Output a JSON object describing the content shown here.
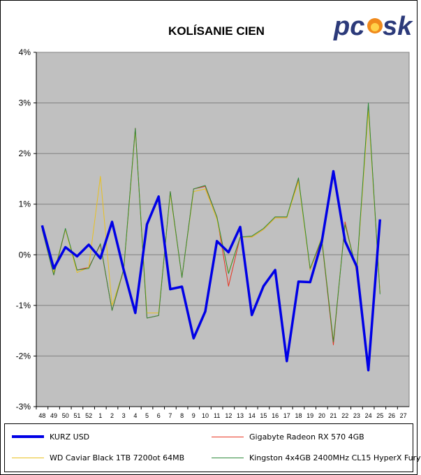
{
  "logo": {
    "text": "pc✪sk",
    "part1": "pc",
    "part2": "sk",
    "color": "#2c3a7a",
    "flame_color": "#f08a1c"
  },
  "chart_data": {
    "type": "line",
    "title": "KOLÍSANIE CIEN",
    "categories": [
      "48",
      "49",
      "50",
      "51",
      "52",
      "1",
      "2",
      "3",
      "4",
      "5",
      "6",
      "7",
      "8",
      "9",
      "10",
      "11",
      "12",
      "13",
      "14",
      "15",
      "16",
      "17",
      "18",
      "19",
      "20",
      "21",
      "22",
      "23",
      "24",
      "25",
      "26",
      "27"
    ],
    "y_ticks": [
      "4%",
      "3%",
      "2%",
      "1%",
      "0%",
      "-1%",
      "-2%",
      "-3%"
    ],
    "ylim": [
      -3,
      4
    ],
    "grid": true,
    "legend_position": "bottom",
    "plot_background": "#c0c0c0",
    "series": [
      {
        "name": "Gigabyte Radeon RX 570 4GB",
        "color": "#e8321e",
        "width": 1,
        "values": [
          0.5,
          -0.4,
          0.5,
          -0.3,
          -0.25,
          0.2,
          -1.1,
          -0.3,
          2.5,
          -1.25,
          -1.2,
          1.25,
          -0.45,
          1.3,
          1.35,
          0.75,
          -0.62,
          0.35,
          0.35,
          0.5,
          0.73,
          0.73,
          1.5,
          -0.3,
          0.3,
          -1.78,
          0.65,
          -0.35,
          2.95,
          -0.75,
          null,
          null
        ]
      },
      {
        "name": "WD Caviar Black 1TB 7200ot 64MB",
        "color": "#e8c020",
        "width": 1,
        "values": [
          0.5,
          -0.35,
          0.5,
          -0.35,
          -0.25,
          1.55,
          -1.0,
          -0.3,
          2.45,
          -1.15,
          -1.15,
          1.2,
          -0.45,
          1.25,
          1.3,
          0.7,
          -0.35,
          0.35,
          0.35,
          0.5,
          0.73,
          0.73,
          1.45,
          -0.3,
          0.35,
          -1.7,
          0.6,
          -0.35,
          2.85,
          -0.75,
          null,
          null
        ]
      },
      {
        "name": "Kingston 4x4GB 2400MHz CL15 HyperX Fury",
        "color": "#2e8b3c",
        "width": 1,
        "values": [
          0.5,
          -0.4,
          0.52,
          -0.3,
          -0.27,
          0.22,
          -1.1,
          -0.28,
          2.5,
          -1.25,
          -1.2,
          1.25,
          -0.45,
          1.3,
          1.37,
          0.75,
          -0.37,
          0.35,
          0.37,
          0.52,
          0.75,
          0.75,
          1.52,
          -0.27,
          0.32,
          -1.72,
          0.6,
          -0.3,
          3.0,
          -0.78,
          null,
          null
        ]
      },
      {
        "name": "KURZ USD",
        "color": "#0000e6",
        "width": 3.5,
        "values": [
          0.58,
          -0.27,
          0.15,
          -0.03,
          0.2,
          -0.07,
          0.65,
          -0.3,
          -1.15,
          0.6,
          1.15,
          -0.68,
          -0.63,
          -1.65,
          -1.12,
          0.27,
          0.05,
          0.55,
          -1.19,
          -0.62,
          -0.3,
          -2.1,
          -0.53,
          -0.54,
          0.25,
          1.65,
          0.27,
          -0.23,
          -2.28,
          0.7,
          null,
          null
        ]
      }
    ],
    "legend_items": [
      {
        "key": "usd",
        "name": "KURZ USD",
        "color": "#0000e6",
        "thick": true
      },
      {
        "key": "gpu",
        "name": "Gigabyte Radeon RX 570 4GB",
        "color": "#e8321e",
        "thick": false
      },
      {
        "key": "hdd",
        "name": "WD Caviar Black 1TB 7200ot 64MB",
        "color": "#e8c020",
        "thick": false
      },
      {
        "key": "ram",
        "name": "Kingston 4x4GB 2400MHz CL15 HyperX Fury",
        "color": "#2e8b3c",
        "thick": false
      }
    ]
  }
}
